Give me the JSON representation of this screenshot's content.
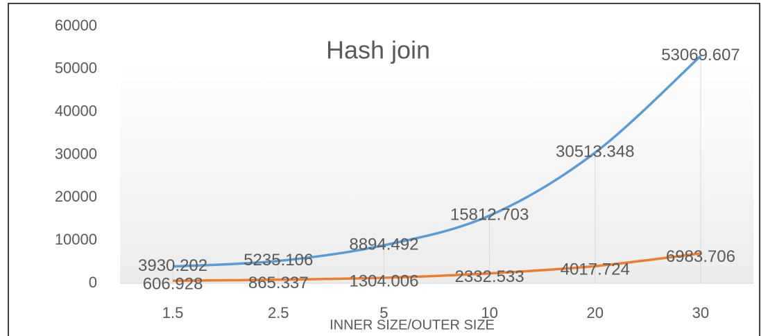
{
  "chart_data": {
    "type": "line",
    "title": "Hash join",
    "x_label": "INNER SIZE/OUTER SIZE",
    "categories": [
      "1.5",
      "2.5",
      "5",
      "10",
      "20",
      "30"
    ],
    "series": [
      {
        "color": "#5b9bd5",
        "values": [
          3930.202,
          5235.106,
          8894.492,
          15812.703,
          30513.348,
          53069.607
        ]
      },
      {
        "color": "#ed7d31",
        "values": [
          606.928,
          865.337,
          1304.006,
          2332.533,
          4017.724,
          6983.706
        ]
      }
    ],
    "ylim": [
      0,
      60000
    ],
    "yticks": [
      0,
      10000,
      20000,
      30000,
      40000,
      50000,
      60000
    ],
    "smooth": true,
    "data_labels": true
  }
}
